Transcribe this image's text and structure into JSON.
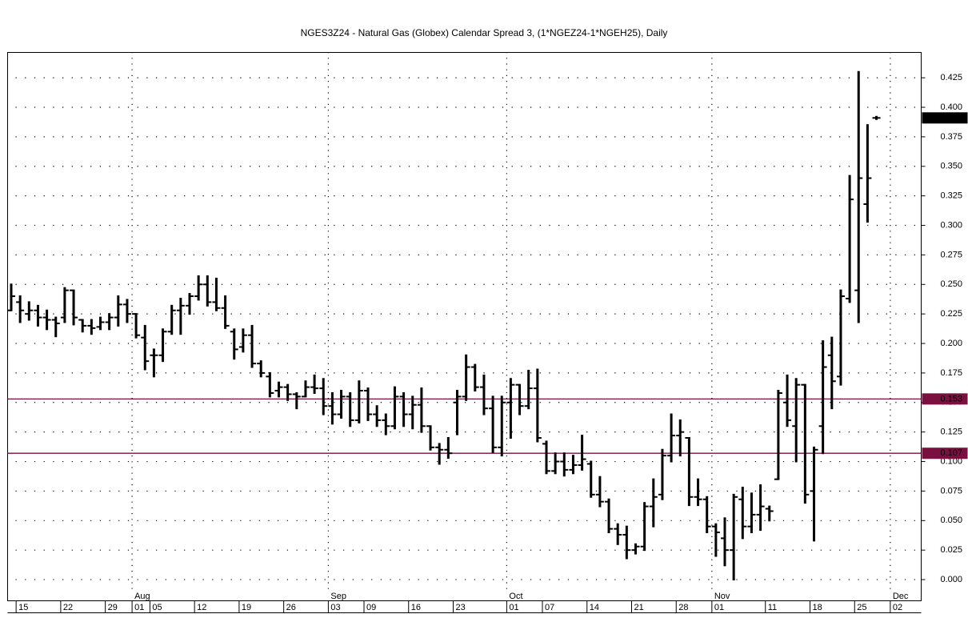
{
  "chart_data": {
    "type": "ohlc",
    "title": "NGES3Z24 - Natural Gas (Globex) Calendar Spread 3, (1*NGEZ24-1*NGEH25), Daily",
    "categories": [
      null,
      "15",
      null,
      null,
      null,
      null,
      "22",
      null,
      null,
      null,
      null,
      "29",
      null,
      null,
      "01",
      null,
      "05",
      null,
      null,
      null,
      null,
      "12",
      null,
      null,
      null,
      null,
      "19",
      null,
      null,
      null,
      null,
      "26",
      null,
      null,
      null,
      null,
      "03",
      null,
      null,
      null,
      "09",
      null,
      null,
      null,
      null,
      "16",
      null,
      null,
      null,
      null,
      "23",
      null,
      null,
      null,
      null,
      null,
      "01",
      null,
      null,
      null,
      "07",
      null,
      null,
      null,
      null,
      "14",
      null,
      null,
      null,
      null,
      "21",
      null,
      null,
      null,
      null,
      "28",
      null,
      null,
      null,
      "01",
      null,
      null,
      null,
      null,
      null,
      "11",
      null,
      null,
      null,
      null,
      "18",
      null,
      null,
      null,
      null,
      "25",
      null,
      null,
      null,
      "02"
    ],
    "months": [
      null,
      null,
      null,
      null,
      null,
      null,
      null,
      null,
      null,
      null,
      null,
      null,
      null,
      null,
      "Aug",
      null,
      null,
      null,
      null,
      null,
      null,
      null,
      null,
      null,
      null,
      null,
      null,
      null,
      null,
      null,
      null,
      null,
      null,
      null,
      null,
      null,
      "Sep",
      null,
      null,
      null,
      null,
      null,
      null,
      null,
      null,
      null,
      null,
      null,
      null,
      null,
      null,
      null,
      null,
      null,
      null,
      null,
      "Oct",
      null,
      null,
      null,
      null,
      null,
      null,
      null,
      null,
      null,
      null,
      null,
      null,
      null,
      null,
      null,
      null,
      null,
      null,
      null,
      null,
      null,
      null,
      "Nov",
      null,
      null,
      null,
      null,
      null,
      null,
      null,
      null,
      null,
      null,
      null,
      null,
      null,
      null,
      null,
      null,
      null,
      null,
      null,
      "Dec"
    ],
    "open": [
      0.228,
      0.235,
      0.225,
      0.228,
      0.222,
      0.22,
      0.222,
      0.245,
      0.22,
      0.215,
      0.214,
      0.218,
      0.222,
      0.233,
      0.225,
      0.205,
      0.19,
      0.19,
      0.21,
      0.228,
      0.232,
      0.24,
      0.25,
      0.235,
      0.23,
      0.21,
      0.197,
      0.207,
      0.183,
      0.172,
      0.16,
      0.163,
      0.157,
      0.155,
      0.163,
      0.162,
      0.147,
      0.14,
      0.155,
      0.135,
      0.16,
      0.14,
      0.135,
      0.13,
      0.155,
      0.14,
      0.148,
      0.13,
      0.112,
      0.11,
      0.15,
      0.155,
      0.18,
      0.163,
      0.145,
      0.112,
      0.15,
      0.165,
      0.147,
      0.162,
      0.115,
      0.092,
      0.1,
      0.093,
      0.097,
      0.098,
      0.072,
      0.066,
      0.043,
      0.038,
      0.025,
      0.028,
      0.062,
      0.072,
      0.105,
      0.122,
      0.12,
      0.07,
      0.068,
      0.045,
      0.035,
      0.025,
      0.068,
      0.045,
      0.055,
      0.06,
      0.085,
      0.15,
      0.13,
      0.165,
      0.075,
      0.13,
      0.19,
      0.172,
      0.238,
      0.245,
      0.318,
      0.391,
      null,
      null
    ],
    "high": [
      0.25,
      0.24,
      0.235,
      0.232,
      0.228,
      0.222,
      0.247,
      0.245,
      0.22,
      0.22,
      0.222,
      0.225,
      0.24,
      0.237,
      0.225,
      0.215,
      0.195,
      0.212,
      0.232,
      0.238,
      0.242,
      0.257,
      0.257,
      0.255,
      0.24,
      0.212,
      0.212,
      0.215,
      0.185,
      0.175,
      0.167,
      0.165,
      0.158,
      0.168,
      0.173,
      0.17,
      0.158,
      0.16,
      0.158,
      0.168,
      0.162,
      0.147,
      0.14,
      0.163,
      0.158,
      0.155,
      0.162,
      0.13,
      0.115,
      0.12,
      0.16,
      0.19,
      0.182,
      0.173,
      0.155,
      0.155,
      0.17,
      0.165,
      0.177,
      0.178,
      0.117,
      0.107,
      0.107,
      0.105,
      0.122,
      0.1,
      0.087,
      0.068,
      0.047,
      0.045,
      0.03,
      0.065,
      0.085,
      0.11,
      0.14,
      0.135,
      0.12,
      0.085,
      0.07,
      0.047,
      0.052,
      0.072,
      0.078,
      0.073,
      0.08,
      0.062,
      0.16,
      0.173,
      0.17,
      0.165,
      0.112,
      0.202,
      0.205,
      0.245,
      0.342,
      0.43,
      0.385,
      0.392,
      null,
      null
    ],
    "low": [
      0.228,
      0.218,
      0.22,
      0.215,
      0.212,
      0.206,
      0.218,
      0.216,
      0.21,
      0.208,
      0.212,
      0.212,
      0.215,
      0.218,
      0.205,
      0.178,
      0.172,
      0.185,
      0.208,
      0.208,
      0.225,
      0.237,
      0.232,
      0.228,
      0.213,
      0.187,
      0.193,
      0.18,
      0.172,
      0.155,
      0.155,
      0.152,
      0.145,
      0.155,
      0.158,
      0.14,
      0.132,
      0.137,
      0.13,
      0.133,
      0.135,
      0.13,
      0.123,
      0.128,
      0.13,
      0.128,
      0.125,
      0.11,
      0.098,
      0.103,
      0.123,
      0.152,
      0.16,
      0.14,
      0.108,
      0.105,
      0.12,
      0.14,
      0.145,
      0.117,
      0.09,
      0.09,
      0.088,
      0.09,
      0.093,
      0.07,
      0.062,
      0.04,
      0.03,
      0.018,
      0.022,
      0.025,
      0.045,
      0.068,
      0.1,
      0.105,
      0.063,
      0.063,
      0.04,
      0.02,
      0.012,
      0,
      0.035,
      0.04,
      0.042,
      0.05,
      0.085,
      0.13,
      0.1,
      0.065,
      0.033,
      0.107,
      0.145,
      0.165,
      0.235,
      0.218,
      0.303,
      0.39,
      null,
      null
    ],
    "close": [
      0.24,
      0.228,
      0.228,
      0.222,
      0.22,
      0.217,
      0.245,
      0.222,
      0.215,
      0.213,
      0.218,
      0.222,
      0.233,
      0.225,
      0.207,
      0.185,
      0.19,
      0.21,
      0.228,
      0.232,
      0.24,
      0.25,
      0.235,
      0.23,
      0.215,
      0.195,
      0.207,
      0.183,
      0.175,
      0.158,
      0.163,
      0.157,
      0.155,
      0.163,
      0.162,
      0.147,
      0.14,
      0.155,
      0.135,
      0.16,
      0.14,
      0.135,
      0.13,
      0.155,
      0.14,
      0.148,
      0.13,
      0.112,
      0.11,
      0.107,
      0.155,
      0.18,
      0.163,
      0.145,
      0.112,
      0.15,
      0.165,
      0.147,
      0.162,
      0.12,
      0.092,
      0.1,
      0.093,
      0.097,
      0.102,
      0.072,
      0.066,
      0.043,
      0.038,
      0.025,
      0.028,
      0.062,
      0.07,
      0.105,
      0.122,
      0.125,
      0.07,
      0.068,
      0.045,
      0.04,
      0.025,
      0.07,
      0.045,
      0.055,
      0.062,
      0.058,
      0.158,
      0.135,
      0.165,
      0.072,
      0.11,
      0.18,
      0.168,
      0.24,
      0.322,
      0.34,
      0.34,
      0.391,
      null,
      null
    ],
    "color": "#000000",
    "ylim": [
      -0.0176,
      0.4468
    ],
    "yticks": [
      {
        "value": 0,
        "label": "0.000"
      },
      0.025,
      {
        "value": 0.05,
        "label": "0.050"
      },
      0.075,
      {
        "value": 0.1,
        "label": "0.100"
      },
      0.125,
      {
        "value": 0.15,
        "label": "0.150"
      },
      0.175,
      {
        "value": 0.2,
        "label": "0.200"
      },
      0.225,
      {
        "value": 0.25,
        "label": "0.250"
      },
      0.275,
      {
        "value": 0.3,
        "label": "0.300"
      },
      0.325,
      {
        "value": 0.35,
        "label": "0.350"
      },
      0.375,
      {
        "value": 0.4,
        "label": "0.400"
      },
      0.425
    ],
    "grid": true,
    "horizontal_lines": [
      0.153,
      0.107
    ],
    "horizontal_line_color": "#7a1040",
    "last_price": 0.391
  }
}
